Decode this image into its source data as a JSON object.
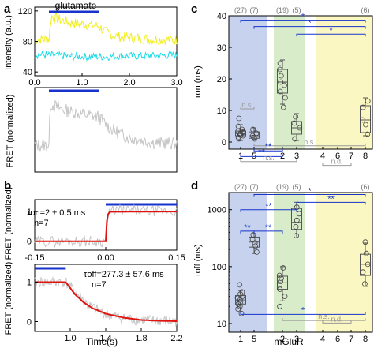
{
  "panels": [
    {
      "letter": "a",
      "title": "glutamate"
    },
    {
      "letter": "b",
      "note_on": "τon=2 ± 0.5 ms",
      "n_on": "n=7",
      "note_off": "τoff=277.3 ± 57.6 ms",
      "n_off": "n=7",
      "xlabel": "Time(s)"
    },
    {
      "letter": "c"
    },
    {
      "letter": "d",
      "xlabel": "mGluR"
    }
  ],
  "colors": {
    "yellow": "#f0ee1c",
    "cyan": "#18dde8",
    "gray": "#c4c4c4",
    "red": "#e0140e",
    "blue": "#1733cc",
    "shade_blue": "#c7d3ee",
    "shade_green": "#d8ecc9",
    "shade_yellow": "#fbf7c2",
    "box": "#555555"
  },
  "chart_data": [
    {
      "id": "a-top",
      "type": "line",
      "title": "glutamate",
      "xlabel": "",
      "ylabel": "Intensity (a.u.)",
      "xlim": [
        0,
        3
      ],
      "ylim": [
        35,
        125
      ],
      "xticks": [
        "0.0",
        "1.0",
        "2.0",
        "3.0"
      ],
      "yticks": [
        "40",
        "80",
        "120"
      ],
      "stimulus_bar": [
        0.3,
        1.35
      ],
      "series": [
        {
          "color": "yellow",
          "x": [
            0.0,
            0.2,
            0.3,
            0.35,
            0.5,
            0.8,
            1.0,
            1.2,
            1.35,
            1.5,
            1.7,
            2.0,
            2.5,
            3.0
          ],
          "y": [
            83,
            83,
            83,
            113,
            109,
            104,
            103,
            101,
            100,
            92,
            87,
            85,
            83,
            82
          ]
        },
        {
          "color": "cyan",
          "x": [
            0.0,
            0.3,
            0.6,
            1.0,
            1.5,
            2.0,
            2.5,
            3.0
          ],
          "y": [
            63,
            62,
            61,
            60,
            60,
            61,
            61,
            62
          ]
        }
      ]
    },
    {
      "id": "a-bottom",
      "type": "line",
      "xlabel": "",
      "ylabel": "FRET (normalized)",
      "xlim": [
        0,
        3
      ],
      "ylim": [
        0,
        1
      ],
      "stimulus_bar": [
        0.3,
        1.35
      ],
      "series": [
        {
          "color": "gray",
          "x": [
            0.0,
            0.3,
            0.33,
            0.6,
            1.0,
            1.35,
            1.6,
            2.0,
            2.5,
            3.0
          ],
          "y": [
            0.2,
            0.2,
            0.78,
            0.7,
            0.64,
            0.6,
            0.43,
            0.3,
            0.24,
            0.22
          ]
        }
      ]
    },
    {
      "id": "b-top",
      "type": "line",
      "xlabel": "",
      "ylabel": "FRET (normalized)",
      "xlim": [
        -0.15,
        0.15
      ],
      "ylim": [
        -0.3,
        1.4
      ],
      "xticks": [
        "-0.15",
        "0.00",
        "0.15"
      ],
      "yticks": [
        "0",
        "1"
      ],
      "stimulus_bar": [
        0.0,
        0.15
      ],
      "series": [
        {
          "color": "gray",
          "x": [
            -0.15,
            -0.05,
            0.0,
            0.002,
            0.006,
            0.015,
            0.15
          ],
          "y": [
            0,
            0,
            0,
            0.4,
            0.9,
            1.05,
            1.0
          ]
        },
        {
          "color": "red",
          "x": [
            -0.15,
            0.0,
            0.001,
            0.002,
            0.004,
            0.006,
            0.01,
            0.15
          ],
          "y": [
            0,
            0,
            0.39,
            0.63,
            0.86,
            0.95,
            0.99,
            1.0
          ]
        }
      ]
    },
    {
      "id": "b-bottom",
      "type": "line",
      "xlabel": "Time(s)",
      "ylabel": "FRET (normalized)",
      "xlim": [
        0.6,
        2.2
      ],
      "ylim": [
        -0.25,
        1.45
      ],
      "xticks": [
        "1.0",
        "1.4",
        "1.8",
        "2.2"
      ],
      "yticks": [
        "0",
        "1"
      ],
      "stimulus_bar": [
        0.6,
        0.95
      ],
      "series": [
        {
          "color": "gray",
          "x": [
            0.6,
            0.95,
            1.2,
            1.4,
            1.6,
            1.8,
            2.0,
            2.2
          ],
          "y": [
            1.0,
            1.0,
            0.42,
            0.18,
            0.08,
            0.04,
            0.02,
            0.0
          ]
        },
        {
          "color": "red",
          "x": [
            0.6,
            0.8,
            0.95,
            1.05,
            1.15,
            1.25,
            1.4,
            1.6,
            1.8,
            2.0,
            2.2
          ],
          "y": [
            1.0,
            1.0,
            1.0,
            0.7,
            0.49,
            0.34,
            0.2,
            0.1,
            0.04,
            0.02,
            0.01
          ]
        }
      ]
    },
    {
      "id": "c",
      "type": "box",
      "xlabel": "",
      "ylabel": "τon (ms)",
      "ylim": [
        0,
        40
      ],
      "yticks": [
        "0",
        "10",
        "20",
        "30",
        "40"
      ],
      "categories": [
        "1",
        "5",
        "2",
        "3",
        "4",
        "6",
        "7",
        "8"
      ],
      "counts": [
        "(27)",
        "(7)",
        "(19)",
        "(5)",
        "(6)"
      ],
      "groups": [
        {
          "cat": "1",
          "q1": 2.0,
          "median": 2.7,
          "q3": 3.5,
          "min": 0.5,
          "max": 5.5,
          "points": [
            1.0,
            1.5,
            2.0,
            2.2,
            2.5,
            2.7,
            3.0,
            3.2,
            3.5,
            4.0,
            5.0,
            7.5
          ]
        },
        {
          "cat": "5",
          "q1": 1.2,
          "median": 2.0,
          "q3": 3.2,
          "min": 0.8,
          "max": 4.5,
          "points": [
            1.0,
            1.5,
            2.0,
            2.8,
            4.0
          ]
        },
        {
          "cat": "2",
          "q1": 15.5,
          "median": 19.0,
          "q3": 23.0,
          "min": 12.0,
          "max": 26.0,
          "points": [
            11.0,
            14.0,
            16.0,
            18.0,
            19.0,
            21.0,
            23.0,
            25.0
          ]
        },
        {
          "cat": "3",
          "q1": 2.5,
          "median": 4.5,
          "q3": 6.5,
          "min": 0.5,
          "max": 9.0,
          "points": [
            1.0,
            4.5,
            6.0,
            8.0
          ]
        },
        {
          "cat": "8",
          "q1": 3.0,
          "median": 7.0,
          "q3": 11.5,
          "min": 2.0,
          "max": 14.0,
          "points": [
            2.5,
            5.5,
            7.0,
            11.0,
            13.0
          ]
        }
      ],
      "annotations": [
        {
          "text": "n.s.",
          "from": "1",
          "to": "5",
          "level": 10.5,
          "color": "gray"
        },
        {
          "text": "n.s.",
          "from": "5",
          "to": "8",
          "level": -1.2,
          "color": "gray"
        },
        {
          "text": "**",
          "from": "5",
          "to": "2",
          "level": -2.8,
          "color": "blue"
        },
        {
          "text": "**",
          "from": "1",
          "to": "2",
          "level": -4.6,
          "color": "blue"
        },
        {
          "text": "n.s.",
          "from": "1",
          "to": "3",
          "level": -6.2,
          "color": "gray"
        },
        {
          "text": "n.d.",
          "from": "4",
          "to": "7",
          "level": -7.4,
          "color": "gray"
        },
        {
          "text": "*",
          "from": "1",
          "to": "8",
          "level": 38.6,
          "color": "blue"
        },
        {
          "text": "*",
          "from": "5",
          "to": "8",
          "level": 36.6,
          "color": "blue"
        },
        {
          "text": "*",
          "from": "3",
          "to": "8",
          "level": 34.2,
          "color": "blue"
        }
      ]
    },
    {
      "id": "d",
      "type": "box",
      "xlabel": "mGluR",
      "ylabel": "τoff (ms)",
      "yscale": "log",
      "ylim": [
        10,
        2000
      ],
      "yticks": [
        "10",
        "100",
        "1000"
      ],
      "categories": [
        "1",
        "5",
        "2",
        "3",
        "4",
        "6",
        "7",
        "8"
      ],
      "counts": [
        "(27)",
        "(7)",
        "(19)",
        "(5)",
        "(6)"
      ],
      "groups": [
        {
          "cat": "1",
          "q1": 22,
          "median": 26,
          "q3": 31,
          "min": 16,
          "max": 38,
          "points": [
            15,
            18,
            20,
            22,
            24,
            26,
            28,
            30,
            33,
            36,
            48
          ]
        },
        {
          "cat": "5",
          "q1": 220,
          "median": 270,
          "q3": 330,
          "min": 170,
          "max": 380,
          "points": [
            180,
            230,
            260,
            300,
            360
          ]
        },
        {
          "cat": "2",
          "q1": 40,
          "median": 52,
          "q3": 68,
          "min": 25,
          "max": 100,
          "points": [
            20,
            30,
            40,
            48,
            55,
            62,
            70,
            95
          ]
        },
        {
          "cat": "3",
          "q1": 450,
          "median": 600,
          "q3": 1050,
          "min": 320,
          "max": 1350,
          "points": [
            350,
            500,
            650,
            850,
            1100
          ]
        },
        {
          "cat": "8",
          "q1": 70,
          "median": 110,
          "q3": 165,
          "min": 45,
          "max": 260,
          "points": [
            50,
            80,
            110,
            170,
            270
          ]
        }
      ],
      "annotations": [
        {
          "text": "**",
          "from": "1",
          "to": "5",
          "level": 420,
          "color": "blue"
        },
        {
          "text": "**",
          "from": "5",
          "to": "2",
          "level": 420,
          "color": "blue"
        },
        {
          "text": "**",
          "from": "1",
          "to": "3",
          "level": 1000,
          "color": "blue"
        },
        {
          "text": "*",
          "from": "5",
          "to": "8",
          "level": 1850,
          "color": "blue"
        },
        {
          "text": "**",
          "from": "3",
          "to": "8",
          "level": 1350,
          "color": "blue"
        },
        {
          "text": "*",
          "from": "1",
          "to": "8",
          "level": 14.5,
          "color": "blue"
        },
        {
          "text": "n.s.",
          "from": "2",
          "to": "8",
          "level": 11.3,
          "color": "gray"
        },
        {
          "text": "n.d.",
          "from": "4",
          "to": "7",
          "level": 10.2,
          "color": "gray"
        }
      ]
    }
  ]
}
